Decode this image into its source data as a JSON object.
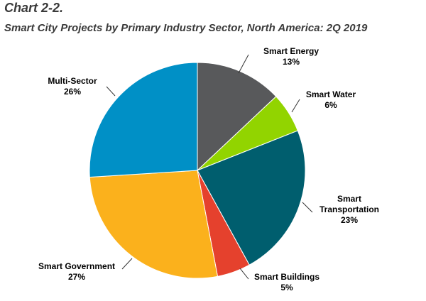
{
  "chart_label": "Chart 2-2.",
  "chart_data": {
    "type": "pie",
    "title": "Smart City Projects by Primary Industry Sector, North America: 2Q 2019",
    "slices": [
      {
        "label": [
          "Smart Energy"
        ],
        "value_text": "13%",
        "value": 13,
        "color": "#58595b"
      },
      {
        "label": [
          "Smart Water"
        ],
        "value_text": "6%",
        "value": 6,
        "color": "#92d400"
      },
      {
        "label": [
          "Smart",
          "Transportation"
        ],
        "value_text": "23%",
        "value": 23,
        "color": "#005e6e"
      },
      {
        "label": [
          "Smart Buildings"
        ],
        "value_text": "5%",
        "value": 5,
        "color": "#e5412d"
      },
      {
        "label": [
          "Smart Government"
        ],
        "value_text": "27%",
        "value": 27,
        "color": "#fbb11c"
      },
      {
        "label": [
          "Multi-Sector"
        ],
        "value_text": "26%",
        "value": 26,
        "color": "#0090c6"
      }
    ],
    "legend": "none"
  }
}
